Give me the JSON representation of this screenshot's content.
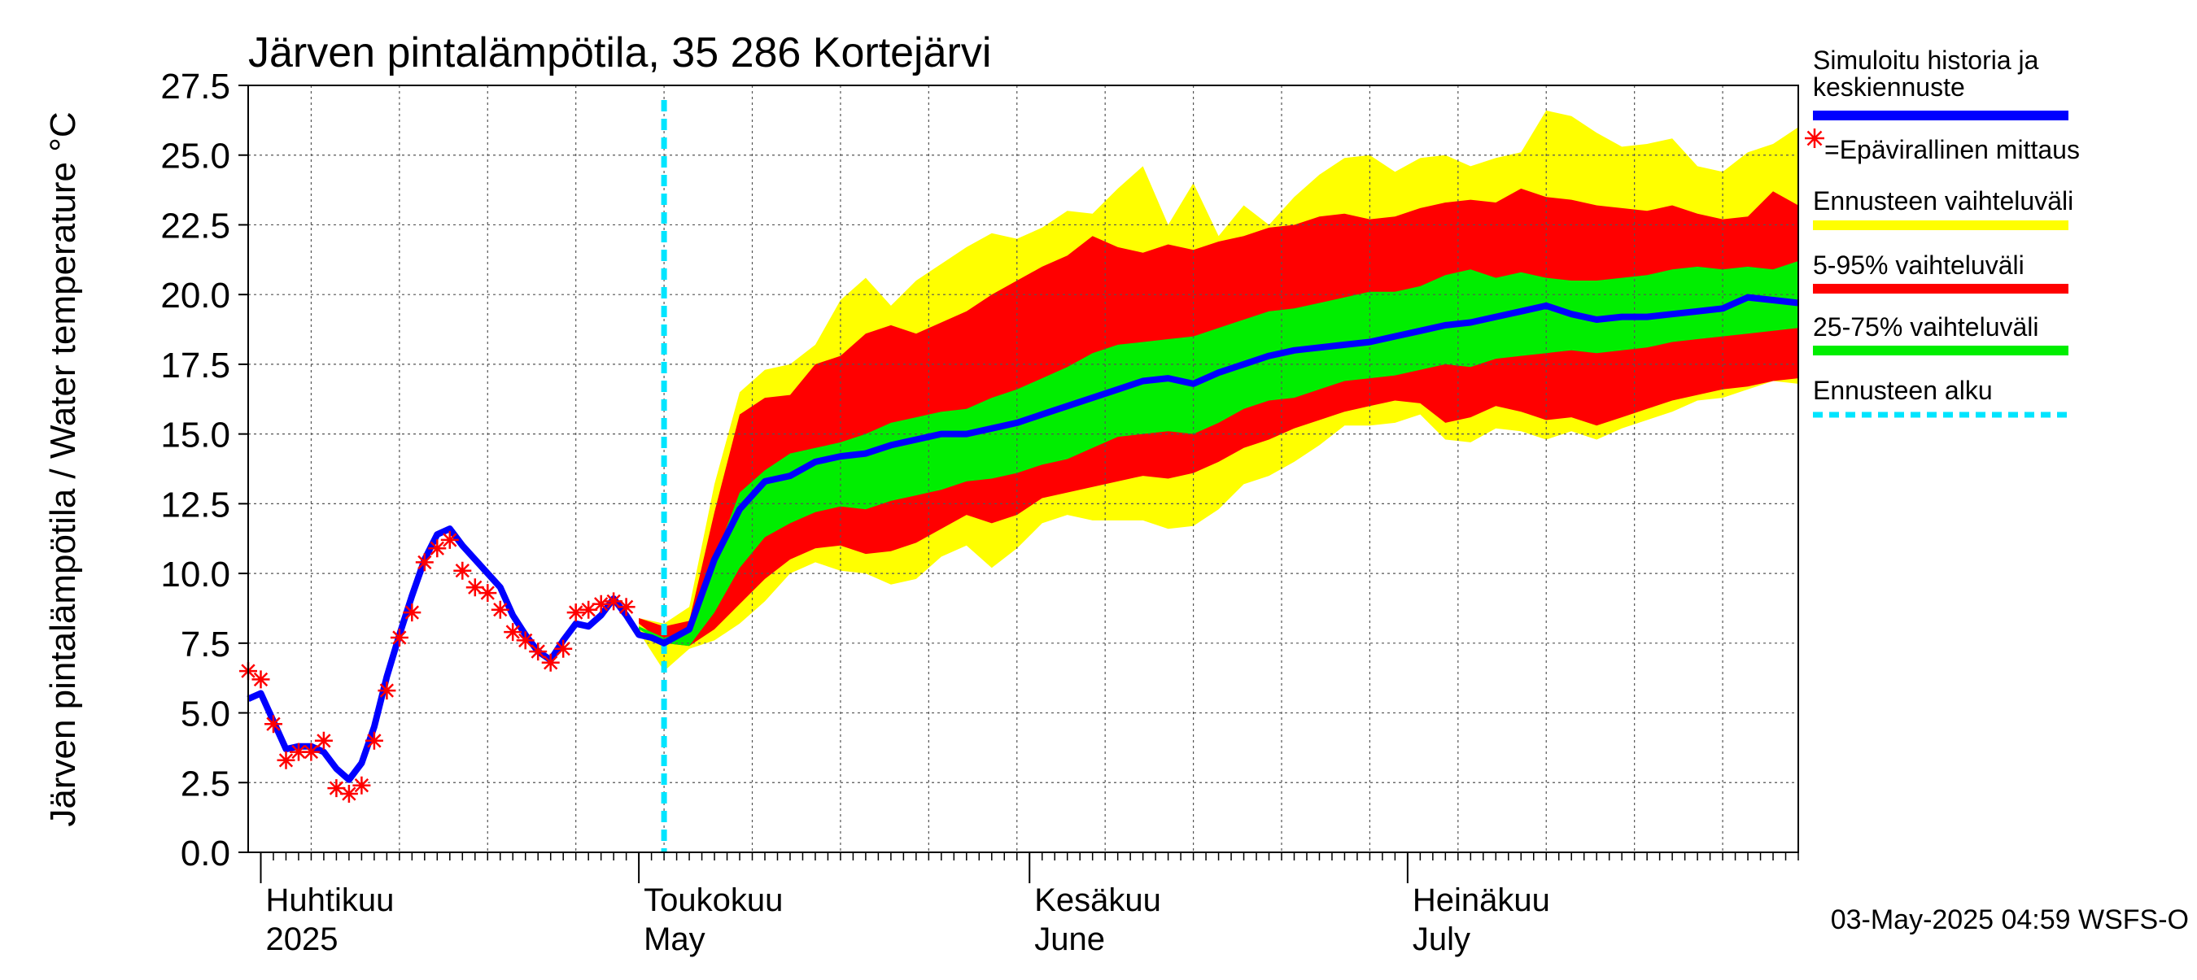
{
  "chart_data": {
    "type": "area",
    "title": "Järven pintalämpötila, 35 286 Kortejärvi",
    "ylabel": "Järven pintalämpötila / Water temperature °C",
    "xlabel": "",
    "ylim": [
      0,
      27.5
    ],
    "xlim": [
      "2025-03-31",
      "2025-08-01"
    ],
    "yticks": [
      "0.0",
      "2.5",
      "5.0",
      "7.5",
      "10.0",
      "12.5",
      "15.0",
      "17.5",
      "20.0",
      "22.5",
      "25.0",
      "27.5"
    ],
    "grid": true,
    "legend_position": "right",
    "month_labels": [
      {
        "date": "2025-04-01",
        "line1": "Huhtikuu",
        "line2": "2025"
      },
      {
        "date": "2025-05-01",
        "line1": "Toukokuu",
        "line2": "May"
      },
      {
        "date": "2025-06-01",
        "line1": "Kesäkuu",
        "line2": "June"
      },
      {
        "date": "2025-07-01",
        "line1": "Heinäkuu",
        "line2": "July"
      }
    ],
    "forecast_start": "2025-05-03",
    "timestamp": "03-May-2025 04:59 WSFS-O",
    "colors": {
      "history": "#0000ff",
      "measurement": "#ff0000",
      "range_full": "#ffff00",
      "range_5_95": "#ff0000",
      "range_25_75": "#00ee00",
      "forecast_start": "#00e5ff"
    },
    "legend": [
      {
        "label": "Simuloitu historia ja",
        "label2": "keskiennuste",
        "kind": "line",
        "color": "#0000ff"
      },
      {
        "label": "=Epävirallinen mittaus",
        "kind": "marker",
        "color": "#ff0000"
      },
      {
        "label": "Ennusteen vaihteluväli",
        "kind": "line",
        "color": "#ffff00"
      },
      {
        "label": "5-95% vaihteluväli",
        "kind": "line",
        "color": "#ff0000"
      },
      {
        "label": "25-75% vaihteluväli",
        "kind": "line",
        "color": "#00ee00"
      },
      {
        "label": "Ennusteen alku",
        "kind": "dashed",
        "color": "#00e5ff"
      }
    ],
    "series": [
      {
        "name": "Simuloitu historia ja keskiennuste",
        "x": [
          "2025-03-31",
          "2025-04-01",
          "2025-04-02",
          "2025-04-03",
          "2025-04-04",
          "2025-04-05",
          "2025-04-06",
          "2025-04-07",
          "2025-04-08",
          "2025-04-09",
          "2025-04-10",
          "2025-04-11",
          "2025-04-12",
          "2025-04-13",
          "2025-04-14",
          "2025-04-15",
          "2025-04-16",
          "2025-04-17",
          "2025-04-18",
          "2025-04-19",
          "2025-04-20",
          "2025-04-21",
          "2025-04-22",
          "2025-04-23",
          "2025-04-24",
          "2025-04-25",
          "2025-04-26",
          "2025-04-27",
          "2025-04-28",
          "2025-04-29",
          "2025-04-30",
          "2025-05-01",
          "2025-05-02",
          "2025-05-03",
          "2025-05-05",
          "2025-05-07",
          "2025-05-09",
          "2025-05-11",
          "2025-05-13",
          "2025-05-15",
          "2025-05-17",
          "2025-05-19",
          "2025-05-21",
          "2025-05-23",
          "2025-05-25",
          "2025-05-27",
          "2025-05-29",
          "2025-05-31",
          "2025-06-02",
          "2025-06-04",
          "2025-06-06",
          "2025-06-08",
          "2025-06-10",
          "2025-06-12",
          "2025-06-14",
          "2025-06-16",
          "2025-06-18",
          "2025-06-20",
          "2025-06-22",
          "2025-06-24",
          "2025-06-26",
          "2025-06-28",
          "2025-06-30",
          "2025-07-02",
          "2025-07-04",
          "2025-07-06",
          "2025-07-08",
          "2025-07-10",
          "2025-07-12",
          "2025-07-14",
          "2025-07-16",
          "2025-07-18",
          "2025-07-20",
          "2025-07-22",
          "2025-07-24",
          "2025-07-26",
          "2025-07-28",
          "2025-07-30",
          "2025-08-01"
        ],
        "y": [
          5.5,
          5.7,
          4.7,
          3.7,
          3.8,
          3.8,
          3.6,
          3.0,
          2.6,
          3.2,
          4.5,
          6.3,
          7.8,
          9.2,
          10.5,
          11.4,
          11.6,
          11.0,
          10.5,
          10.0,
          9.5,
          8.5,
          7.8,
          7.2,
          6.9,
          7.6,
          8.2,
          8.1,
          8.5,
          9.1,
          8.5,
          7.8,
          7.7,
          7.5,
          8.0,
          10.5,
          12.3,
          13.3,
          13.5,
          14.0,
          14.2,
          14.3,
          14.6,
          14.8,
          15.0,
          15.0,
          15.2,
          15.4,
          15.7,
          16.0,
          16.3,
          16.6,
          16.9,
          17.0,
          16.8,
          17.2,
          17.5,
          17.8,
          18.0,
          18.1,
          18.2,
          18.3,
          18.5,
          18.7,
          18.9,
          19.0,
          19.2,
          19.4,
          19.6,
          19.3,
          19.1,
          19.2,
          19.2,
          19.3,
          19.4,
          19.5,
          19.9,
          19.8,
          19.7
        ]
      },
      {
        "name": "Epävirallinen mittaus",
        "x": [
          "2025-03-31",
          "2025-04-01",
          "2025-04-02",
          "2025-04-03",
          "2025-04-04",
          "2025-04-05",
          "2025-04-06",
          "2025-04-07",
          "2025-04-08",
          "2025-04-09",
          "2025-04-10",
          "2025-04-11",
          "2025-04-12",
          "2025-04-13",
          "2025-04-14",
          "2025-04-15",
          "2025-04-16",
          "2025-04-17",
          "2025-04-18",
          "2025-04-19",
          "2025-04-20",
          "2025-04-21",
          "2025-04-22",
          "2025-04-23",
          "2025-04-24",
          "2025-04-25",
          "2025-04-26",
          "2025-04-27",
          "2025-04-28",
          "2025-04-29",
          "2025-04-30"
        ],
        "y": [
          6.5,
          6.2,
          4.6,
          3.3,
          3.6,
          3.6,
          4.0,
          2.3,
          2.1,
          2.4,
          4.0,
          5.8,
          7.7,
          8.6,
          10.4,
          10.9,
          11.2,
          10.1,
          9.5,
          9.3,
          8.7,
          7.9,
          7.6,
          7.2,
          6.8,
          7.3,
          8.6,
          8.7,
          8.9,
          9.0,
          8.8
        ]
      }
    ],
    "bands": {
      "x": [
        "2025-05-01",
        "2025-05-03",
        "2025-05-05",
        "2025-05-07",
        "2025-05-09",
        "2025-05-11",
        "2025-05-13",
        "2025-05-15",
        "2025-05-17",
        "2025-05-19",
        "2025-05-21",
        "2025-05-23",
        "2025-05-25",
        "2025-05-27",
        "2025-05-29",
        "2025-05-31",
        "2025-06-02",
        "2025-06-04",
        "2025-06-06",
        "2025-06-08",
        "2025-06-10",
        "2025-06-12",
        "2025-06-14",
        "2025-06-16",
        "2025-06-18",
        "2025-06-20",
        "2025-06-22",
        "2025-06-24",
        "2025-06-26",
        "2025-06-28",
        "2025-06-30",
        "2025-07-02",
        "2025-07-04",
        "2025-07-06",
        "2025-07-08",
        "2025-07-10",
        "2025-07-12",
        "2025-07-14",
        "2025-07-16",
        "2025-07-18",
        "2025-07-20",
        "2025-07-22",
        "2025-07-24",
        "2025-07-26",
        "2025-07-28",
        "2025-07-30",
        "2025-08-01"
      ],
      "full_min": [
        7.9,
        6.5,
        7.3,
        7.6,
        8.2,
        9.0,
        10.0,
        10.4,
        10.1,
        10.0,
        9.6,
        9.8,
        10.6,
        11.0,
        10.2,
        10.9,
        11.8,
        12.1,
        11.9,
        11.9,
        11.9,
        11.6,
        11.7,
        12.3,
        13.2,
        13.5,
        14.0,
        14.6,
        15.3,
        15.3,
        15.4,
        15.7,
        14.8,
        14.7,
        15.2,
        15.1,
        14.8,
        15.1,
        14.8,
        15.2,
        15.5,
        15.8,
        16.2,
        16.3,
        16.6,
        16.9,
        16.8
      ],
      "p5": [
        8.2,
        7.5,
        7.4,
        8.0,
        8.9,
        9.8,
        10.5,
        10.9,
        11.0,
        10.7,
        10.8,
        11.1,
        11.6,
        12.1,
        11.8,
        12.1,
        12.7,
        12.9,
        13.1,
        13.3,
        13.5,
        13.4,
        13.6,
        14.0,
        14.5,
        14.8,
        15.2,
        15.5,
        15.8,
        16.0,
        16.2,
        16.1,
        15.4,
        15.6,
        16.0,
        15.8,
        15.5,
        15.6,
        15.3,
        15.6,
        15.9,
        16.2,
        16.4,
        16.6,
        16.7,
        16.9,
        17.0
      ],
      "p25": [
        8.0,
        7.5,
        7.4,
        8.6,
        10.2,
        11.3,
        11.8,
        12.2,
        12.4,
        12.3,
        12.6,
        12.8,
        13.0,
        13.3,
        13.4,
        13.6,
        13.9,
        14.1,
        14.5,
        14.9,
        15.0,
        15.1,
        15.0,
        15.4,
        15.9,
        16.2,
        16.3,
        16.6,
        16.9,
        17.0,
        17.1,
        17.3,
        17.5,
        17.4,
        17.7,
        17.8,
        17.9,
        18.0,
        17.9,
        18.0,
        18.1,
        18.3,
        18.4,
        18.5,
        18.6,
        18.7,
        18.8
      ],
      "p75": [
        8.1,
        7.7,
        7.9,
        10.5,
        12.9,
        13.7,
        14.3,
        14.5,
        14.7,
        15.0,
        15.4,
        15.6,
        15.8,
        15.9,
        16.3,
        16.6,
        17.0,
        17.4,
        17.9,
        18.2,
        18.3,
        18.4,
        18.5,
        18.8,
        19.1,
        19.4,
        19.5,
        19.7,
        19.9,
        20.1,
        20.1,
        20.3,
        20.7,
        20.9,
        20.6,
        20.8,
        20.6,
        20.5,
        20.5,
        20.6,
        20.7,
        20.9,
        21.0,
        20.9,
        21.0,
        20.9,
        21.2
      ],
      "p95": [
        8.4,
        8.1,
        8.3,
        12.2,
        15.7,
        16.3,
        16.4,
        17.5,
        17.8,
        18.6,
        18.9,
        18.6,
        19.0,
        19.4,
        20.0,
        20.5,
        21.0,
        21.4,
        22.1,
        21.7,
        21.5,
        21.8,
        21.6,
        21.9,
        22.1,
        22.4,
        22.5,
        22.8,
        22.9,
        22.7,
        22.8,
        23.1,
        23.3,
        23.4,
        23.3,
        23.8,
        23.5,
        23.4,
        23.2,
        23.1,
        23.0,
        23.2,
        22.9,
        22.7,
        22.8,
        23.7,
        23.2
      ],
      "full_max": [
        8.4,
        8.2,
        8.8,
        13.2,
        16.5,
        17.3,
        17.5,
        18.2,
        19.8,
        20.6,
        19.6,
        20.5,
        21.1,
        21.7,
        22.2,
        22.0,
        22.4,
        23.0,
        22.9,
        23.8,
        24.6,
        22.5,
        24.0,
        22.1,
        23.2,
        22.5,
        23.5,
        24.3,
        24.9,
        25.0,
        24.4,
        24.9,
        25.0,
        24.6,
        24.9,
        25.1,
        26.6,
        26.4,
        25.8,
        25.3,
        25.4,
        25.6,
        24.6,
        24.4,
        25.1,
        25.4,
        26.0
      ]
    }
  }
}
